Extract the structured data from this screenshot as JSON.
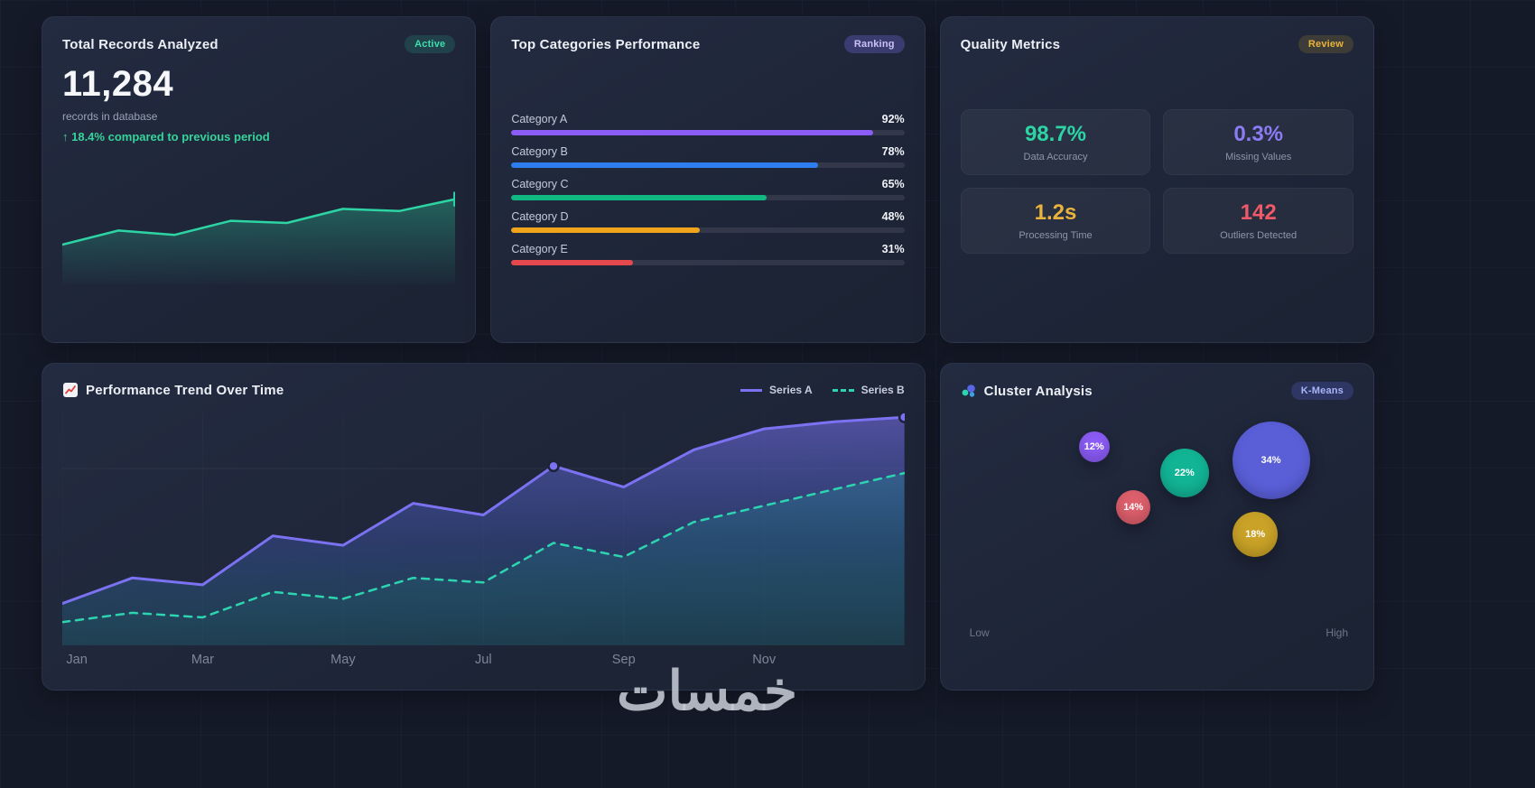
{
  "watermark": "خمسات",
  "cards": {
    "records": {
      "title": "Total Records Analyzed",
      "badge": "Active",
      "value": "11,284",
      "subtitle": "records in database",
      "delta": "↑ 18.4% compared to previous period"
    },
    "categories": {
      "title": "Top Categories Performance",
      "badge": "Ranking"
    },
    "quality": {
      "title": "Quality Metrics",
      "badge": "Review",
      "metrics": [
        {
          "value": "98.7%",
          "label": "Data Accuracy",
          "color": "#2dd4a4"
        },
        {
          "value": "0.3%",
          "label": "Missing Values",
          "color": "#8b7cf6"
        },
        {
          "value": "1.2s",
          "label": "Processing Time",
          "color": "#e9b33c"
        },
        {
          "value": "142",
          "label": "Outliers Detected",
          "color": "#ef5a6a"
        }
      ]
    },
    "trend": {
      "title": "Performance Trend Over Time"
    },
    "cluster": {
      "title": "Cluster Analysis",
      "badge": "K-Means",
      "axis_low": "Low",
      "axis_high": "High"
    }
  },
  "chart_data": [
    {
      "id": "records-spark",
      "type": "area",
      "title": "Total Records Analyzed trend",
      "values": [
        30,
        43,
        39,
        52,
        50,
        63,
        61,
        72
      ],
      "ylim": [
        0,
        100
      ],
      "color": "#2dd4a4"
    },
    {
      "id": "category-bars",
      "type": "bar",
      "title": "Top Categories Performance",
      "categories": [
        "Category A",
        "Category B",
        "Category C",
        "Category D",
        "Category E"
      ],
      "values": [
        92,
        78,
        65,
        48,
        31
      ],
      "value_suffix": "%",
      "xlim": [
        0,
        100
      ],
      "colors": [
        "#8b5cf6",
        "#2f7ef0",
        "#10b981",
        "#f0a41c",
        "#e5484d"
      ]
    },
    {
      "id": "performance-trend",
      "type": "line",
      "title": "Performance Trend Over Time",
      "x_ticks": [
        "Jan",
        "Mar",
        "May",
        "Jul",
        "Sep",
        "Nov"
      ],
      "tick_indices": [
        0,
        2,
        4,
        6,
        8,
        10
      ],
      "ylim": [
        0,
        100
      ],
      "grid": "subtle",
      "legend_position": "top-right",
      "series": [
        {
          "name": "Series A",
          "style": "solid",
          "color": "#7b72f2",
          "values": [
            18,
            29,
            26,
            47,
            43,
            61,
            56,
            77,
            68,
            84,
            93,
            96,
            98
          ],
          "marker_indices": [
            7,
            12
          ]
        },
        {
          "name": "Series B",
          "style": "dashed",
          "color": "#2dd4b0",
          "values": [
            10,
            14,
            12,
            23,
            20,
            29,
            27,
            44,
            38,
            53,
            60,
            67,
            74
          ]
        }
      ]
    },
    {
      "id": "cluster-bubbles",
      "type": "scatter",
      "title": "Cluster Analysis (K-Means)",
      "x_axis": {
        "low": "Low",
        "high": "High"
      },
      "xlim": [
        0,
        100
      ],
      "ylim": [
        0,
        100
      ],
      "points": [
        {
          "label": "12%",
          "x": 34,
          "y": 85,
          "r": 17,
          "color": "#8b5cf6"
        },
        {
          "label": "22%",
          "x": 57,
          "y": 75,
          "r": 27,
          "color": "#12b496"
        },
        {
          "label": "34%",
          "x": 79,
          "y": 80,
          "r": 43,
          "color": "#5a5fd8"
        },
        {
          "label": "14%",
          "x": 44,
          "y": 62,
          "r": 19,
          "color": "#dd5f6c"
        },
        {
          "label": "18%",
          "x": 75,
          "y": 52,
          "r": 25,
          "color": "#c9a227"
        }
      ]
    }
  ]
}
